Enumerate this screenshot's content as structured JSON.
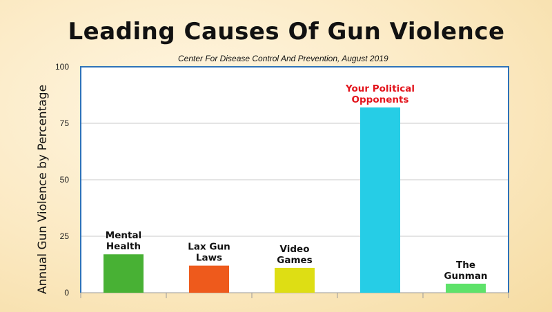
{
  "chart_data": {
    "type": "bar",
    "title": "Leading Causes Of Gun Violence",
    "subtitle": "Center For Disease Control And Prevention, August 2019",
    "ylabel": "Annual Gun Violence by Percentage",
    "xlabel": "",
    "ylim": [
      0,
      100
    ],
    "yticks": [
      0,
      25,
      50,
      75,
      100
    ],
    "grid": true,
    "categories": [
      "Mental Health",
      "Lax Gun Laws",
      "Video Games",
      "Your Political Opponents",
      "The Gunman"
    ],
    "category_label_lines": [
      [
        "Mental",
        "Health"
      ],
      [
        "Lax Gun",
        "Laws"
      ],
      [
        "Video",
        "Games"
      ],
      [
        "Your Political",
        "Opponents"
      ],
      [
        "The",
        "Gunman"
      ]
    ],
    "values": [
      17,
      12,
      11,
      82,
      4
    ],
    "colors": [
      "#48b134",
      "#ee5a1c",
      "#dede14",
      "#26cde6",
      "#5ee26a"
    ],
    "label_colors": [
      "#111111",
      "#111111",
      "#111111",
      "#e3141c",
      "#111111"
    ],
    "axis_color": "#2e72b8",
    "grid_color": "#c9c9c9"
  }
}
